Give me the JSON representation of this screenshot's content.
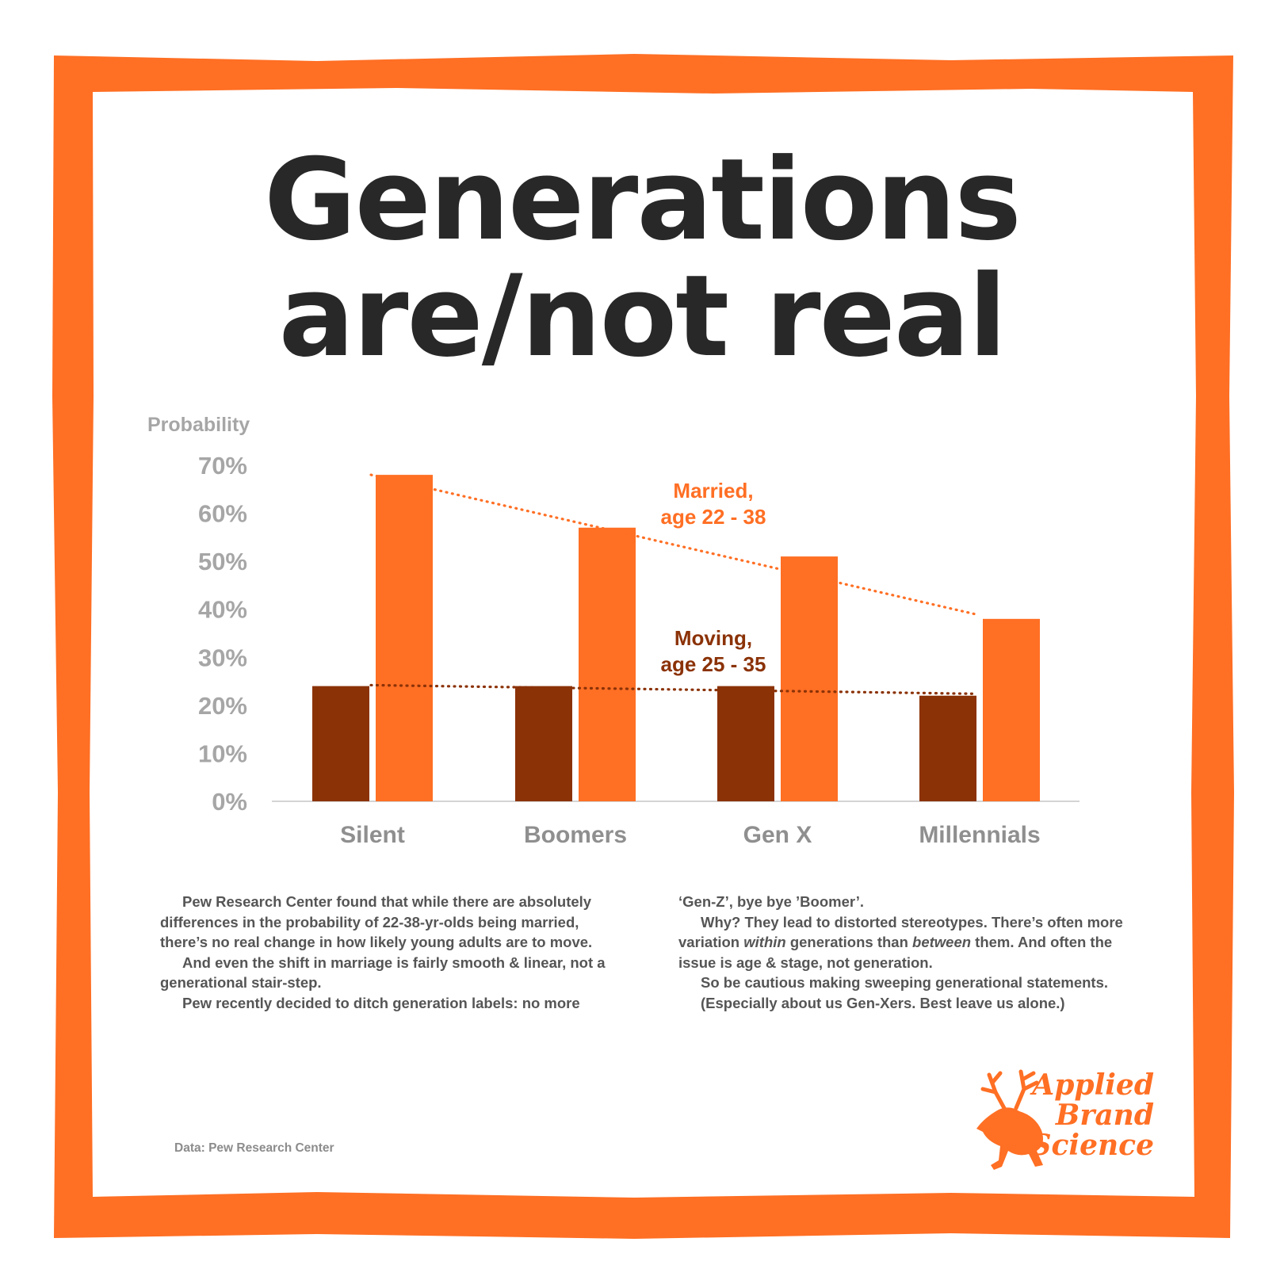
{
  "title_line_1": "Generations",
  "title_line_2": "are/not real",
  "colors": {
    "frame": "#ff6f24",
    "married": "#ff6f24",
    "moving": "#8b3207",
    "axis_text": "#a6a6a6",
    "category_text": "#8f8f8f"
  },
  "chart_data": {
    "type": "bar",
    "ylabel": "Probability",
    "ylim": [
      0,
      70
    ],
    "y_ticks": [
      "0%",
      "10%",
      "20%",
      "30%",
      "40%",
      "50%",
      "60%",
      "70%"
    ],
    "categories": [
      "Silent",
      "Boomers",
      "Gen X",
      "Millennials"
    ],
    "series": [
      {
        "name": "Moving, age 25 - 35",
        "label_line_1": "Moving,",
        "label_line_2": "age 25 - 35",
        "color": "#8b3207",
        "values": [
          24,
          24,
          24,
          22
        ]
      },
      {
        "name": "Married, age 22 - 38",
        "label_line_1": "Married,",
        "label_line_2": "age 22 - 38",
        "color": "#ff6f24",
        "values": [
          68,
          57,
          51,
          38
        ]
      }
    ],
    "trendlines": [
      {
        "series": "Married, age 22 - 38",
        "style": "dotted",
        "start": 68,
        "end": 39
      },
      {
        "series": "Moving, age 25 - 35",
        "style": "dotted",
        "start": 24.2,
        "end": 22.4
      }
    ],
    "grid": false
  },
  "body": {
    "left": [
      "Pew Research Center found that while there are absolutely differences in the probability of 22-38-yr-olds being married, there’s no real change in how likely young adults are to move.",
      "And even the shift in marriage is fairly smooth & linear, not a generational stair-step.",
      "Pew recently decided to ditch generation labels: no more"
    ],
    "right_first": "‘Gen-Z’, bye bye ’Boomer’.",
    "right_why_a": "Why? They lead to distorted stereotypes. There’s often more variation ",
    "right_why_within": "within",
    "right_why_b": " generations than ",
    "right_why_between": "between",
    "right_why_c": " them. And often the issue is age & stage, not generation.",
    "right_p3": "So be cautious making sweeping generational statements.",
    "right_p4": "(Especially about us Gen-Xers. Best leave us alone.)"
  },
  "source": "Data: Pew Research Center",
  "logo": {
    "line_1": "Applied",
    "line_2": "Brand",
    "line_3": "Science",
    "icon": "deer-frog-icon"
  }
}
